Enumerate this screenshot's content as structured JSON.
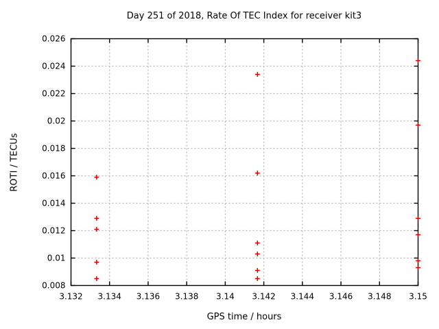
{
  "chart_data": {
    "type": "scatter",
    "title": "Day 251 of 2018, Rate Of TEC Index for receiver kit3",
    "xlabel": "GPS time / hours",
    "ylabel": "ROTI / TECUs",
    "xlim": [
      3.132,
      3.15
    ],
    "ylim": [
      0.008,
      0.026
    ],
    "xtick_values": [
      3.132,
      3.134,
      3.136,
      3.138,
      3.14,
      3.142,
      3.144,
      3.146,
      3.148,
      3.15
    ],
    "xtick_labels": [
      "3.132",
      "3.134",
      "3.136",
      "3.138",
      "3.14",
      "3.142",
      "3.144",
      "3.146",
      "3.148",
      "3.15"
    ],
    "ytick_values": [
      0.008,
      0.01,
      0.012,
      0.014,
      0.016,
      0.018,
      0.02,
      0.022,
      0.024,
      0.026
    ],
    "ytick_labels": [
      "0.008",
      "0.01",
      "0.012",
      "0.014",
      "0.016",
      "0.018",
      "0.02",
      "0.022",
      "0.024",
      "0.026"
    ],
    "grid": true,
    "legend": "none",
    "marker": {
      "shape": "plus",
      "color": "#e00000",
      "size": 7
    },
    "colors": {
      "border": "#000000",
      "gridline": "#b3b3b3",
      "text": "#000000",
      "background": "#ffffff"
    },
    "series": [
      {
        "name": "ROTI",
        "points": [
          [
            3.13333,
            0.0159
          ],
          [
            3.13333,
            0.0129
          ],
          [
            3.13333,
            0.0121
          ],
          [
            3.13333,
            0.0097
          ],
          [
            3.13333,
            0.0085
          ],
          [
            3.14167,
            0.0234
          ],
          [
            3.14167,
            0.0162
          ],
          [
            3.14167,
            0.0111
          ],
          [
            3.14167,
            0.0103
          ],
          [
            3.14167,
            0.0091
          ],
          [
            3.14167,
            0.0085
          ],
          [
            3.15,
            0.0244
          ],
          [
            3.15,
            0.0197
          ],
          [
            3.15,
            0.0129
          ],
          [
            3.15,
            0.0117
          ],
          [
            3.15,
            0.0098
          ],
          [
            3.15,
            0.0093
          ]
        ]
      }
    ]
  }
}
